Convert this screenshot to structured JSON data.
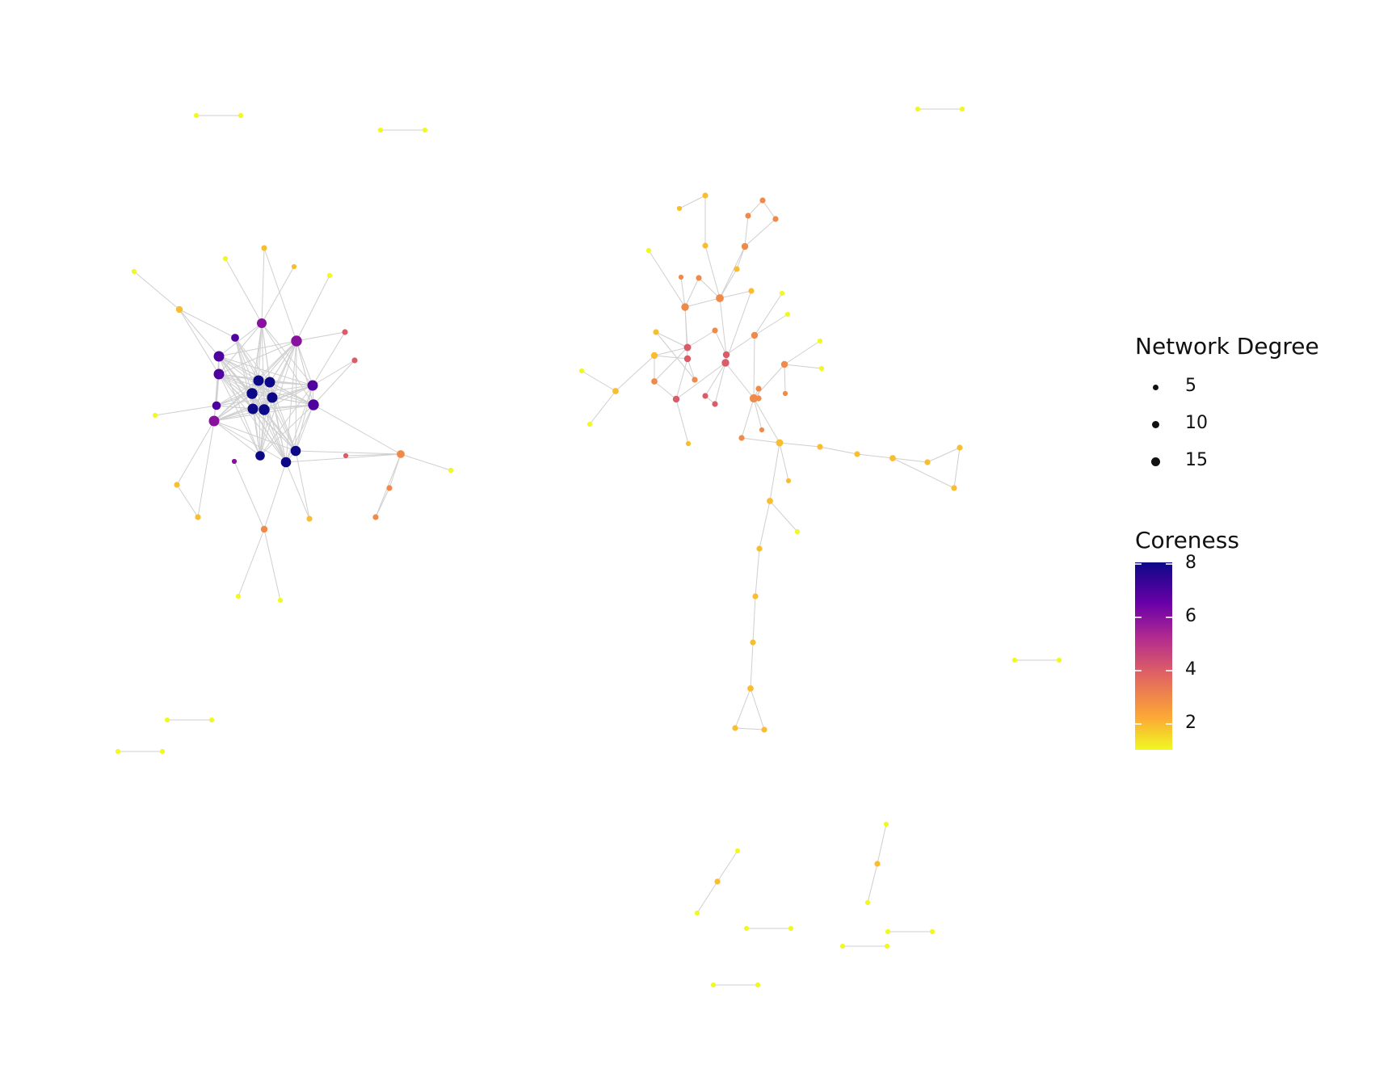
{
  "legend_size": {
    "title": "Network Degree",
    "items": [
      {
        "label": "5",
        "value": 5
      },
      {
        "label": "10",
        "value": 10
      },
      {
        "label": "15",
        "value": 15
      }
    ]
  },
  "legend_color": {
    "title": "Coreness",
    "min": 1,
    "max": 8,
    "ticks": [
      {
        "label": "8",
        "value": 8
      },
      {
        "label": "6",
        "value": 6
      },
      {
        "label": "4",
        "value": 4
      },
      {
        "label": "2",
        "value": 2
      }
    ],
    "palette": [
      "#0d0887",
      "#6a00a8",
      "#b12a90",
      "#e16462",
      "#fca636",
      "#f0f921"
    ]
  }
}
